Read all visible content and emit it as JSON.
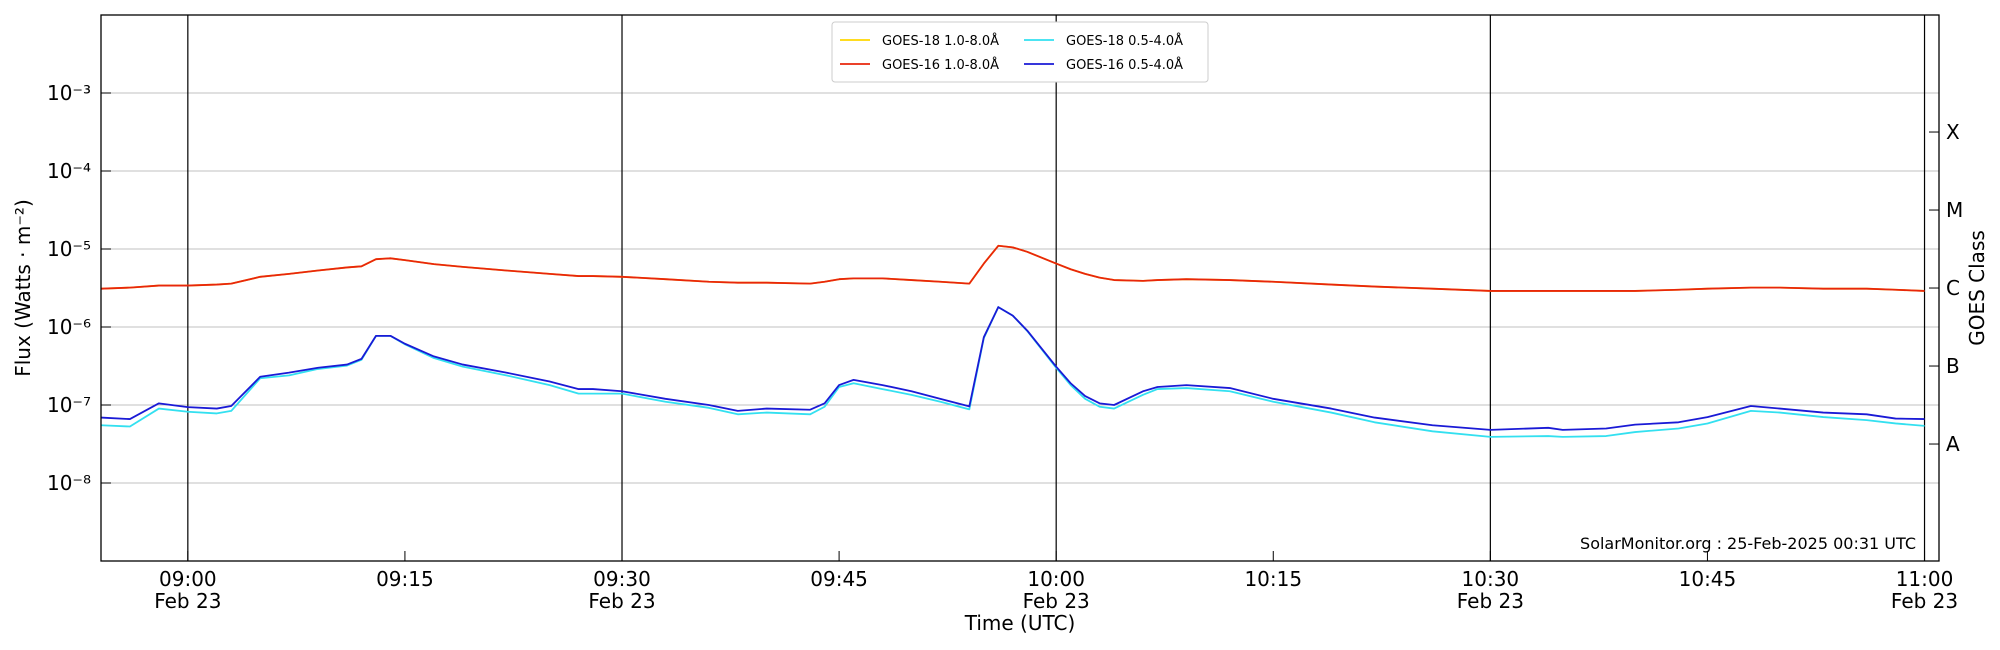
{
  "chart_data": {
    "type": "line",
    "xlabel": "Time (UTC)",
    "ylabel": "Flux (Watts · m⁻²)",
    "y2label": "GOES Class",
    "annotation": "SolarMonitor.org : 25-Feb-2025 00:31 UTC",
    "yscale": "log",
    "ygrid": true,
    "legend_loc": "upper center",
    "legend_ncol": 2,
    "xlim": [
      "08:54",
      "11:01"
    ],
    "ylim": [
      1e-09,
      0.01
    ],
    "xticks": [
      {
        "value": "09:00",
        "label": "09:00\nFeb 23"
      },
      "09:15",
      {
        "value": "09:30",
        "label": "09:30\nFeb 23"
      },
      "09:45",
      {
        "value": "10:00",
        "label": "10:00\nFeb 23"
      },
      "10:15",
      {
        "value": "10:30",
        "label": "10:30\nFeb 23"
      },
      "10:45",
      {
        "value": "11:00",
        "label": "11:00\nFeb 23"
      }
    ],
    "vlines": [
      "09:00",
      "09:30",
      "10:00",
      "10:30",
      "11:00"
    ],
    "yticks": [
      {
        "value": 1e-08,
        "label": "10⁻⁸"
      },
      {
        "value": 1e-07,
        "label": "10⁻⁷"
      },
      {
        "value": 1e-06,
        "label": "10⁻⁶"
      },
      {
        "value": 1e-05,
        "label": "10⁻⁵"
      },
      {
        "value": 0.0001,
        "label": "10⁻⁴"
      },
      {
        "value": 0.001,
        "label": "10⁻³"
      }
    ],
    "y2ticks": [
      {
        "value": 3.16e-08,
        "label": "A"
      },
      {
        "value": 3.16e-07,
        "label": "B"
      },
      {
        "value": 3.16e-06,
        "label": "C"
      },
      {
        "value": 3.16e-05,
        "label": "M"
      },
      {
        "value": 0.000316,
        "label": "X"
      }
    ],
    "x": [
      "08:54",
      "08:56",
      "08:58",
      "09:00",
      "09:02",
      "09:03",
      "09:05",
      "09:07",
      "09:09",
      "09:11",
      "09:12",
      "09:13",
      "09:14",
      "09:15",
      "09:17",
      "09:19",
      "09:22",
      "09:25",
      "09:27",
      "09:28",
      "09:30",
      "09:33",
      "09:36",
      "09:38",
      "09:40",
      "09:43",
      "09:44",
      "09:45",
      "09:46",
      "09:48",
      "09:50",
      "09:52",
      "09:54",
      "09:55",
      "09:56",
      "09:57",
      "09:58",
      "10:00",
      "10:01",
      "10:02",
      "10:03",
      "10:04",
      "10:06",
      "10:07",
      "10:09",
      "10:12",
      "10:15",
      "10:19",
      "10:22",
      "10:26",
      "10:30",
      "10:34",
      "10:35",
      "10:38",
      "10:40",
      "10:43",
      "10:45",
      "10:48",
      "10:50",
      "10:53",
      "10:56",
      "10:58",
      "11:00"
    ],
    "series": [
      {
        "name": "GOES-18 1.0-8.0Å",
        "color": "#ffd700",
        "values": [
          3.1e-06,
          3.2e-06,
          3.4e-06,
          3.4e-06,
          3.5e-06,
          3.6e-06,
          4.4e-06,
          4.8e-06,
          5.3e-06,
          5.8e-06,
          6e-06,
          7.4e-06,
          7.6e-06,
          7.2e-06,
          6.4e-06,
          5.9e-06,
          5.3e-06,
          4.8e-06,
          4.5e-06,
          4.5e-06,
          4.4e-06,
          4.1e-06,
          3.8e-06,
          3.7e-06,
          3.7e-06,
          3.6e-06,
          3.8e-06,
          4.1e-06,
          4.2e-06,
          4.2e-06,
          4e-06,
          3.8e-06,
          3.6e-06,
          6.5e-06,
          1.1e-05,
          1.05e-05,
          9.2e-06,
          6.5e-06,
          5.5e-06,
          4.8e-06,
          4.3e-06,
          4e-06,
          3.9e-06,
          4e-06,
          4.1e-06,
          4e-06,
          3.8e-06,
          3.5e-06,
          3.3e-06,
          3.1e-06,
          2.9e-06,
          2.9e-06,
          2.9e-06,
          2.9e-06,
          2.9e-06,
          3e-06,
          3.1e-06,
          3.2e-06,
          3.2e-06,
          3.1e-06,
          3.1e-06,
          3e-06,
          2.9e-06
        ]
      },
      {
        "name": "GOES-16 1.0-8.0Å",
        "color": "#e8260c",
        "values": [
          3.1e-06,
          3.2e-06,
          3.4e-06,
          3.4e-06,
          3.5e-06,
          3.6e-06,
          4.4e-06,
          4.8e-06,
          5.3e-06,
          5.8e-06,
          6e-06,
          7.4e-06,
          7.6e-06,
          7.2e-06,
          6.4e-06,
          5.9e-06,
          5.3e-06,
          4.8e-06,
          4.5e-06,
          4.5e-06,
          4.4e-06,
          4.1e-06,
          3.8e-06,
          3.7e-06,
          3.7e-06,
          3.6e-06,
          3.8e-06,
          4.1e-06,
          4.2e-06,
          4.2e-06,
          4e-06,
          3.8e-06,
          3.6e-06,
          6.5e-06,
          1.1e-05,
          1.05e-05,
          9.2e-06,
          6.5e-06,
          5.5e-06,
          4.8e-06,
          4.3e-06,
          4e-06,
          3.9e-06,
          4e-06,
          4.1e-06,
          4e-06,
          3.8e-06,
          3.5e-06,
          3.3e-06,
          3.1e-06,
          2.9e-06,
          2.9e-06,
          2.9e-06,
          2.9e-06,
          2.9e-06,
          3e-06,
          3.1e-06,
          3.2e-06,
          3.2e-06,
          3.1e-06,
          3.1e-06,
          3e-06,
          2.9e-06
        ]
      },
      {
        "name": "GOES-18 0.5-4.0Å",
        "color": "#33e0f0",
        "values": [
          5.5e-08,
          5.3e-08,
          9e-08,
          8.2e-08,
          7.8e-08,
          8.4e-08,
          2.2e-07,
          2.4e-07,
          2.9e-07,
          3.2e-07,
          3.8e-07,
          7.7e-07,
          7.7e-07,
          6e-07,
          4e-07,
          3.1e-07,
          2.4e-07,
          1.8e-07,
          1.4e-07,
          1.4e-07,
          1.4e-07,
          1.1e-07,
          9.2e-08,
          7.6e-08,
          8e-08,
          7.6e-08,
          9.5e-08,
          1.7e-07,
          1.9e-07,
          1.6e-07,
          1.35e-07,
          1.1e-07,
          8.8e-08,
          7.2e-07,
          1.8e-06,
          1.4e-06,
          8.9e-07,
          3e-07,
          1.8e-07,
          1.2e-07,
          9.5e-08,
          9e-08,
          1.35e-07,
          1.6e-07,
          1.65e-07,
          1.5e-07,
          1.1e-07,
          8e-08,
          6e-08,
          4.6e-08,
          3.9e-08,
          4e-08,
          3.9e-08,
          4e-08,
          4.5e-08,
          5e-08,
          5.8e-08,
          8.4e-08,
          8e-08,
          7e-08,
          6.4e-08,
          5.8e-08,
          5.4e-08
        ]
      },
      {
        "name": "GOES-16 0.5-4.0Å",
        "color": "#1a1ad6",
        "values": [
          6.9e-08,
          6.6e-08,
          1.05e-07,
          9.4e-08,
          9e-08,
          9.7e-08,
          2.3e-07,
          2.6e-07,
          3e-07,
          3.3e-07,
          3.9e-07,
          7.7e-07,
          7.7e-07,
          6.1e-07,
          4.2e-07,
          3.3e-07,
          2.6e-07,
          2e-07,
          1.6e-07,
          1.6e-07,
          1.5e-07,
          1.2e-07,
          1e-07,
          8.4e-08,
          9e-08,
          8.7e-08,
          1.05e-07,
          1.8e-07,
          2.1e-07,
          1.8e-07,
          1.5e-07,
          1.2e-07,
          9.6e-08,
          7.4e-07,
          1.8e-06,
          1.4e-06,
          9e-07,
          3.1e-07,
          1.9e-07,
          1.3e-07,
          1.05e-07,
          1e-07,
          1.5e-07,
          1.7e-07,
          1.8e-07,
          1.65e-07,
          1.2e-07,
          9e-08,
          6.9e-08,
          5.5e-08,
          4.8e-08,
          5.1e-08,
          4.8e-08,
          5e-08,
          5.6e-08,
          6e-08,
          7e-08,
          9.7e-08,
          9e-08,
          8e-08,
          7.6e-08,
          6.7e-08,
          6.6e-08
        ]
      }
    ]
  }
}
